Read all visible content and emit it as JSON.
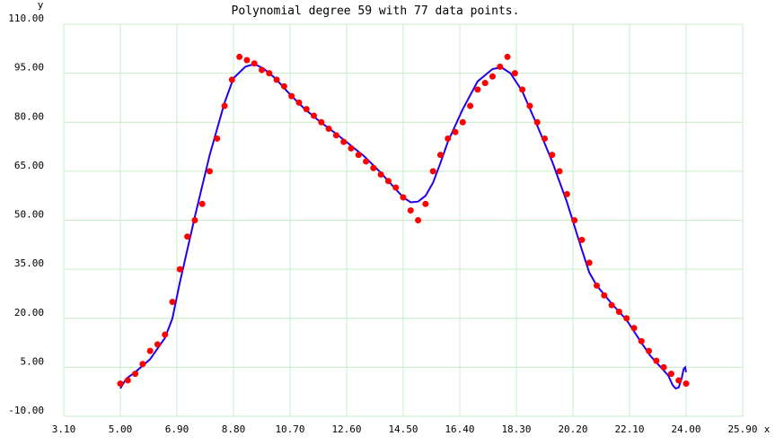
{
  "chart_data": {
    "type": "scatter",
    "title": "Polynomial degree 59 with 77 data points.",
    "xlabel": "x",
    "ylabel": "y",
    "xlim": [
      3.1,
      25.9
    ],
    "ylim": [
      -10,
      110
    ],
    "x_ticks": [
      "3.10",
      "5.00",
      "6.90",
      "8.80",
      "10.70",
      "12.60",
      "14.50",
      "16.40",
      "18.30",
      "20.20",
      "22.10",
      "24.00",
      "25.90"
    ],
    "y_ticks": [
      "110.00",
      "95.00",
      "80.00",
      "65.00",
      "50.00",
      "35.00",
      "20.00",
      "5.00",
      "-10.00"
    ],
    "grid": true,
    "colors": {
      "points": "#ff0000",
      "curve": "#2200ee",
      "grid": "#c8ecc8"
    },
    "points": [
      [
        5.0,
        0
      ],
      [
        5.25,
        1
      ],
      [
        5.5,
        3
      ],
      [
        5.75,
        6
      ],
      [
        6.0,
        10
      ],
      [
        6.25,
        12
      ],
      [
        6.5,
        15
      ],
      [
        6.75,
        25
      ],
      [
        7.0,
        35
      ],
      [
        7.25,
        45
      ],
      [
        7.5,
        50
      ],
      [
        7.75,
        55
      ],
      [
        8.0,
        65
      ],
      [
        8.25,
        75
      ],
      [
        8.5,
        85
      ],
      [
        8.75,
        93
      ],
      [
        9.0,
        100
      ],
      [
        9.25,
        99
      ],
      [
        9.5,
        98
      ],
      [
        9.75,
        96
      ],
      [
        10.0,
        95
      ],
      [
        10.25,
        93
      ],
      [
        10.5,
        91
      ],
      [
        10.75,
        88
      ],
      [
        11.0,
        86
      ],
      [
        11.25,
        84
      ],
      [
        11.5,
        82
      ],
      [
        11.75,
        80
      ],
      [
        12.0,
        78
      ],
      [
        12.25,
        76
      ],
      [
        12.5,
        74
      ],
      [
        12.75,
        72
      ],
      [
        13.0,
        70
      ],
      [
        13.25,
        68
      ],
      [
        13.5,
        66
      ],
      [
        13.75,
        64
      ],
      [
        14.0,
        62
      ],
      [
        14.25,
        60
      ],
      [
        14.5,
        57
      ],
      [
        14.75,
        53
      ],
      [
        15.0,
        50
      ],
      [
        15.25,
        55
      ],
      [
        15.5,
        65
      ],
      [
        15.75,
        70
      ],
      [
        16.0,
        75
      ],
      [
        16.25,
        77
      ],
      [
        16.5,
        80
      ],
      [
        16.75,
        85
      ],
      [
        17.0,
        90
      ],
      [
        17.25,
        92
      ],
      [
        17.5,
        94
      ],
      [
        17.75,
        97
      ],
      [
        18.0,
        100
      ],
      [
        18.25,
        95
      ],
      [
        18.5,
        90
      ],
      [
        18.75,
        85
      ],
      [
        19.0,
        80
      ],
      [
        19.25,
        75
      ],
      [
        19.5,
        70
      ],
      [
        19.75,
        65
      ],
      [
        20.0,
        58
      ],
      [
        20.25,
        50
      ],
      [
        20.5,
        44
      ],
      [
        20.75,
        37
      ],
      [
        21.0,
        30
      ],
      [
        21.25,
        27
      ],
      [
        21.5,
        24
      ],
      [
        21.75,
        22
      ],
      [
        22.0,
        20
      ],
      [
        22.25,
        17
      ],
      [
        22.5,
        13
      ],
      [
        22.75,
        10
      ],
      [
        23.0,
        7
      ],
      [
        23.25,
        5
      ],
      [
        23.5,
        3
      ],
      [
        23.75,
        1
      ],
      [
        24.0,
        0
      ]
    ],
    "curve": [
      [
        5.0,
        -1.5
      ],
      [
        5.2,
        1.5
      ],
      [
        5.5,
        3.5
      ],
      [
        6.0,
        7.5
      ],
      [
        6.5,
        14
      ],
      [
        6.75,
        20
      ],
      [
        7.0,
        31
      ],
      [
        7.5,
        51
      ],
      [
        8.0,
        70
      ],
      [
        8.5,
        86
      ],
      [
        8.8,
        93.5
      ],
      [
        9.2,
        97
      ],
      [
        9.5,
        97.8
      ],
      [
        9.8,
        96.5
      ],
      [
        10.2,
        93.5
      ],
      [
        10.7,
        88.5
      ],
      [
        11.2,
        84
      ],
      [
        11.7,
        80.2
      ],
      [
        12.2,
        76.8
      ],
      [
        12.7,
        73.2
      ],
      [
        13.2,
        69.5
      ],
      [
        13.7,
        65
      ],
      [
        14.2,
        60
      ],
      [
        14.5,
        57
      ],
      [
        14.75,
        55.5
      ],
      [
        15.0,
        55.7
      ],
      [
        15.25,
        57.5
      ],
      [
        15.5,
        61.5
      ],
      [
        15.75,
        67.5
      ],
      [
        16.0,
        74
      ],
      [
        16.5,
        84
      ],
      [
        17.0,
        92.5
      ],
      [
        17.5,
        96.3
      ],
      [
        17.8,
        96.8
      ],
      [
        18.1,
        95
      ],
      [
        18.5,
        89.5
      ],
      [
        19.0,
        79
      ],
      [
        19.5,
        68
      ],
      [
        20.0,
        55.5
      ],
      [
        20.5,
        41
      ],
      [
        20.75,
        34
      ],
      [
        21.0,
        30
      ],
      [
        21.5,
        24.5
      ],
      [
        22.0,
        19.5
      ],
      [
        22.5,
        12.5
      ],
      [
        22.8,
        8.5
      ],
      [
        23.2,
        4.5
      ],
      [
        23.4,
        2.5
      ],
      [
        23.55,
        -0.5
      ],
      [
        23.65,
        -1.5
      ],
      [
        23.75,
        -1.2
      ],
      [
        23.85,
        1.5
      ],
      [
        23.92,
        4.5
      ],
      [
        23.97,
        5
      ],
      [
        24.0,
        3.5
      ]
    ]
  }
}
